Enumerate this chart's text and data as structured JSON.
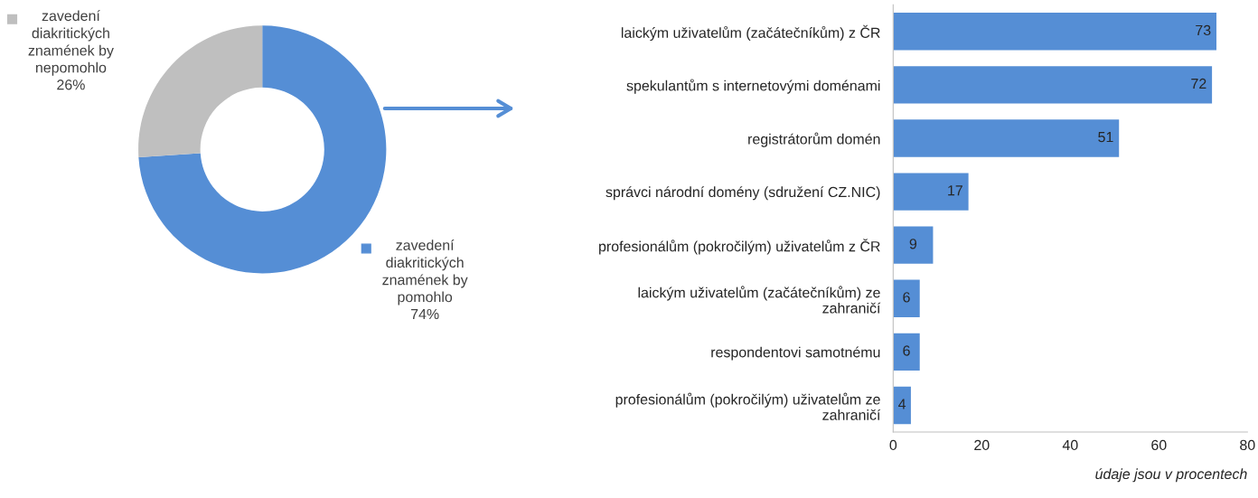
{
  "chart_data": [
    {
      "type": "donut",
      "categories": [
        "zavedení diakritických znamének by pomohlo",
        "zavedení diakritických znamének by nepomohlo"
      ],
      "values": [
        74,
        26
      ],
      "colors": [
        "#558ed5",
        "#bfbfbf"
      ],
      "data_labels": true,
      "value_labels": [
        "74%",
        "26%"
      ],
      "legend": "bottom left"
    },
    {
      "type": "bar",
      "orientation": "horizontal",
      "categories": [
        "laickým uživatelům (začátečníkům) z ČR",
        "spekulantům s internetovými doménami",
        "registrátorům domén",
        "správci národní domény (sdružení CZ.NIC)",
        "profesionálům (pokročilým) uživatelům z ČR",
        "laickým uživatelům (začátečníkům) ze zahraničí",
        "respondentovi samotnému",
        "profesionálům (pokročilým) uživatelům ze zahraničí"
      ],
      "values": [
        73,
        72,
        51,
        17,
        9,
        6,
        6,
        4
      ],
      "color": "#558ed5",
      "xlim": [
        0,
        80
      ],
      "xticks": [
        0,
        20,
        40,
        60,
        80
      ],
      "data_labels": true,
      "annotations": [
        "údaje jsou v procentech"
      ]
    }
  ]
}
